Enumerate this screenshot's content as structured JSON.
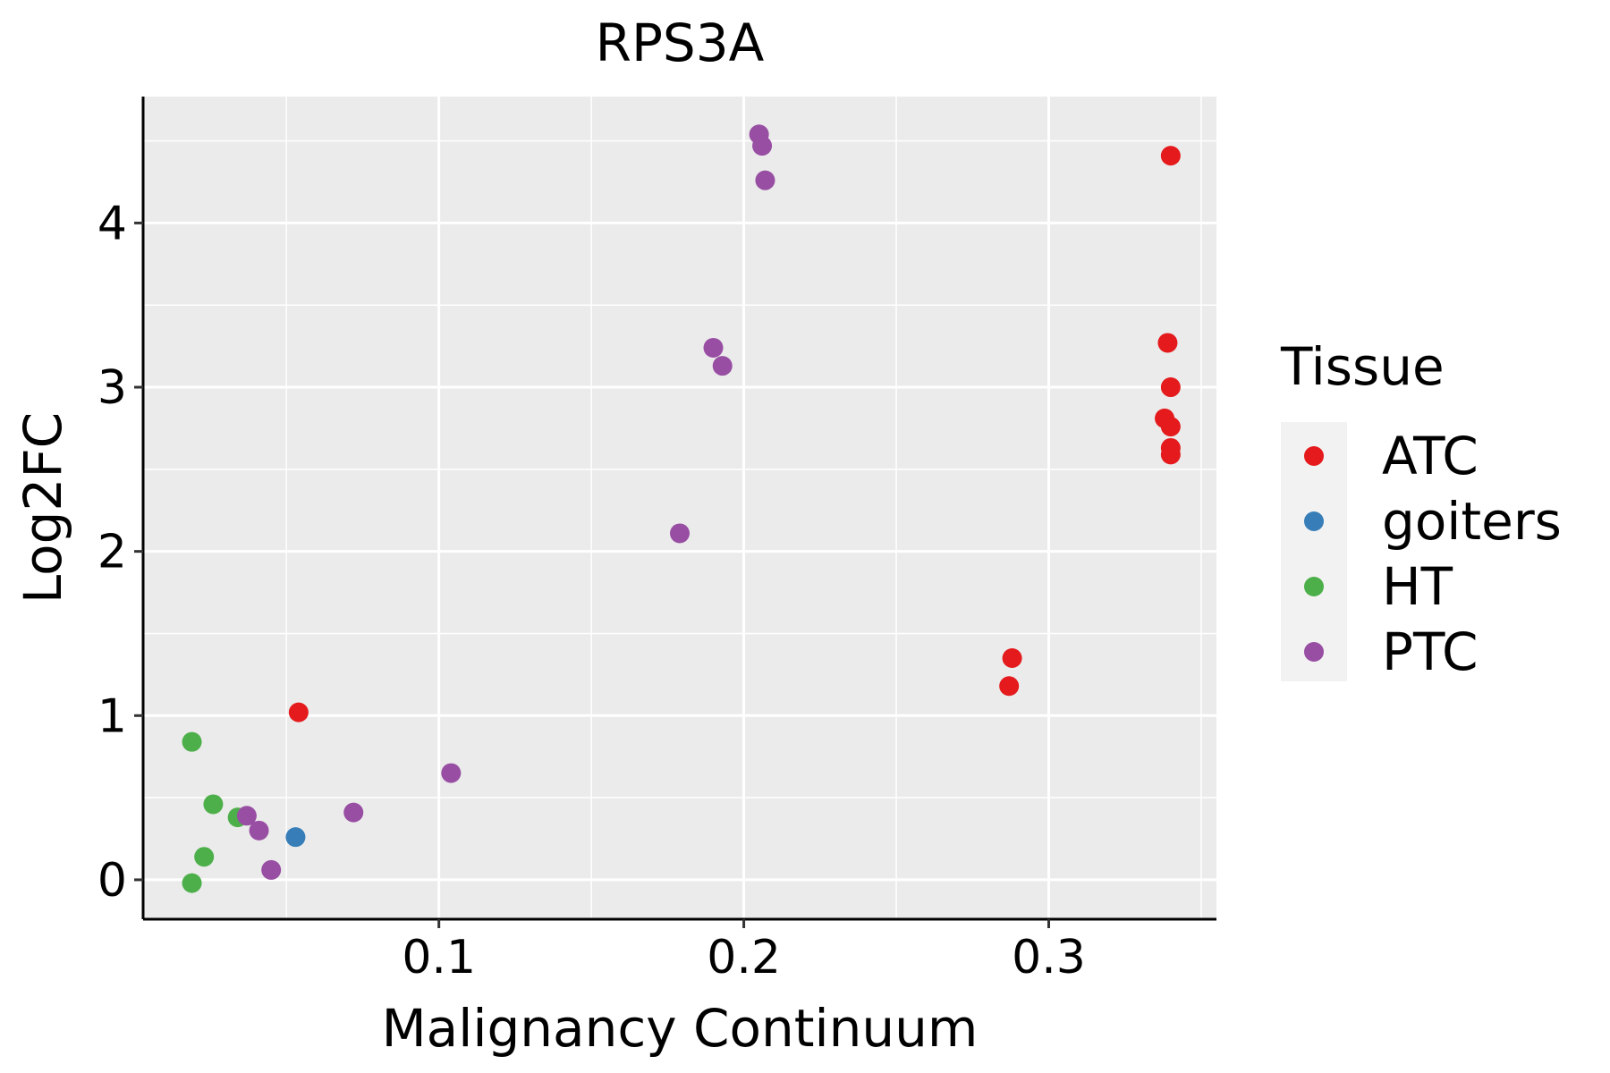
{
  "chart_data": {
    "type": "scatter",
    "title": "RPS3A",
    "xlabel": "Malignancy Continuum",
    "ylabel": "Log2FC",
    "xlim": [
      0.003,
      0.355
    ],
    "ylim": [
      -0.24,
      4.77
    ],
    "x_ticks": [
      0.1,
      0.2,
      0.3
    ],
    "x_tick_labels": [
      "0.1",
      "0.2",
      "0.3"
    ],
    "y_ticks": [
      0,
      1,
      2,
      3,
      4
    ],
    "y_tick_labels": [
      "0",
      "1",
      "2",
      "3",
      "4"
    ],
    "grid": true,
    "legend": {
      "title": "Tissue",
      "position": "right"
    },
    "series": [
      {
        "name": "ATC",
        "color": "#E41A1C",
        "points": [
          {
            "x": 0.34,
            "y": 4.41
          },
          {
            "x": 0.339,
            "y": 3.27
          },
          {
            "x": 0.34,
            "y": 3.0
          },
          {
            "x": 0.338,
            "y": 2.81
          },
          {
            "x": 0.34,
            "y": 2.76
          },
          {
            "x": 0.34,
            "y": 2.63
          },
          {
            "x": 0.34,
            "y": 2.59
          },
          {
            "x": 0.288,
            "y": 1.35
          },
          {
            "x": 0.287,
            "y": 1.18
          },
          {
            "x": 0.054,
            "y": 1.02
          }
        ]
      },
      {
        "name": "goiters",
        "color": "#377EB8",
        "points": [
          {
            "x": 0.053,
            "y": 0.26
          }
        ]
      },
      {
        "name": "HT",
        "color": "#4DAF4A",
        "points": [
          {
            "x": 0.019,
            "y": 0.84
          },
          {
            "x": 0.026,
            "y": 0.46
          },
          {
            "x": 0.034,
            "y": 0.38
          },
          {
            "x": 0.023,
            "y": 0.14
          },
          {
            "x": 0.019,
            "y": -0.02
          }
        ]
      },
      {
        "name": "PTC",
        "color": "#984EA3",
        "points": [
          {
            "x": 0.205,
            "y": 4.54
          },
          {
            "x": 0.206,
            "y": 4.47
          },
          {
            "x": 0.207,
            "y": 4.26
          },
          {
            "x": 0.19,
            "y": 3.24
          },
          {
            "x": 0.193,
            "y": 3.13
          },
          {
            "x": 0.179,
            "y": 2.11
          },
          {
            "x": 0.104,
            "y": 0.65
          },
          {
            "x": 0.072,
            "y": 0.41
          },
          {
            "x": 0.037,
            "y": 0.39
          },
          {
            "x": 0.041,
            "y": 0.3
          },
          {
            "x": 0.045,
            "y": 0.06
          }
        ]
      }
    ]
  }
}
